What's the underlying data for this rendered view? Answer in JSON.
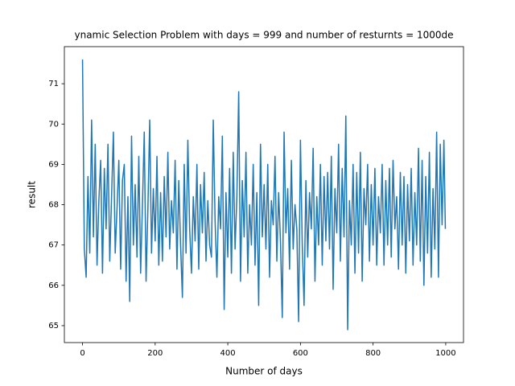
{
  "chart_data": {
    "type": "line",
    "title": "ynamic Selection Problem with days = 999 and number of resturnts = 1000de",
    "x_label": "Number of days",
    "y_label": "result",
    "color": "#1f77b4",
    "xlim": [
      -49.95,
      1048.95
    ],
    "ylim": [
      64.58,
      71.92
    ],
    "xticks": [
      0,
      200,
      400,
      600,
      800,
      1000
    ],
    "yticks": [
      65,
      66,
      67,
      68,
      69,
      70,
      71
    ],
    "x": [
      0,
      5,
      10,
      15,
      20,
      25,
      30,
      35,
      40,
      45,
      50,
      55,
      60,
      65,
      70,
      75,
      80,
      85,
      90,
      95,
      100,
      105,
      110,
      115,
      120,
      125,
      130,
      135,
      140,
      145,
      150,
      155,
      160,
      165,
      170,
      175,
      180,
      185,
      190,
      195,
      200,
      205,
      210,
      215,
      220,
      225,
      230,
      235,
      240,
      245,
      250,
      255,
      260,
      265,
      270,
      275,
      280,
      285,
      290,
      295,
      300,
      305,
      310,
      315,
      320,
      325,
      330,
      335,
      340,
      345,
      350,
      355,
      360,
      365,
      370,
      375,
      380,
      385,
      390,
      395,
      400,
      405,
      410,
      415,
      420,
      425,
      430,
      435,
      440,
      445,
      450,
      455,
      460,
      465,
      470,
      475,
      480,
      485,
      490,
      495,
      500,
      505,
      510,
      515,
      520,
      525,
      530,
      535,
      540,
      545,
      550,
      555,
      560,
      565,
      570,
      575,
      580,
      585,
      590,
      595,
      600,
      605,
      610,
      615,
      620,
      625,
      630,
      635,
      640,
      645,
      650,
      655,
      660,
      665,
      670,
      675,
      680,
      685,
      690,
      695,
      700,
      705,
      710,
      715,
      720,
      725,
      730,
      735,
      740,
      745,
      750,
      755,
      760,
      765,
      770,
      775,
      780,
      785,
      790,
      795,
      800,
      805,
      810,
      815,
      820,
      825,
      830,
      835,
      840,
      845,
      850,
      855,
      860,
      865,
      870,
      875,
      880,
      885,
      890,
      895,
      900,
      905,
      910,
      915,
      920,
      925,
      930,
      935,
      940,
      945,
      950,
      955,
      960,
      965,
      970,
      975,
      980,
      985,
      990,
      995,
      999
    ],
    "values": [
      71.6,
      66.9,
      66.2,
      68.7,
      66.8,
      70.1,
      67.2,
      69.5,
      66.5,
      68.1,
      69.1,
      66.3,
      68.9,
      67.4,
      69.5,
      66.6,
      68.2,
      69.8,
      66.8,
      67.9,
      69.1,
      66.4,
      68.6,
      69.0,
      66.1,
      68.2,
      65.6,
      69.7,
      67.0,
      68.5,
      66.7,
      69.2,
      66.3,
      68.0,
      69.8,
      66.1,
      67.9,
      70.1,
      66.8,
      68.4,
      67.1,
      69.2,
      66.5,
      68.3,
      66.6,
      68.7,
      67.2,
      69.3,
      66.9,
      68.1,
      67.3,
      69.1,
      66.4,
      68.6,
      67.0,
      65.7,
      69.0,
      66.8,
      69.6,
      67.4,
      66.3,
      68.2,
      67.1,
      69.0,
      66.4,
      68.5,
      67.3,
      68.8,
      66.6,
      68.1,
      67.0,
      66.7,
      70.1,
      67.6,
      66.2,
      68.2,
      67.4,
      69.7,
      65.4,
      68.3,
      66.7,
      68.9,
      66.3,
      69.3,
      66.9,
      68.2,
      70.8,
      66.1,
      68.6,
      67.2,
      69.3,
      66.3,
      68.0,
      67.0,
      69.0,
      66.5,
      68.3,
      65.5,
      69.5,
      67.2,
      68.5,
      66.9,
      69.0,
      66.2,
      68.1,
      67.5,
      69.2,
      66.6,
      68.3,
      67.1,
      65.2,
      69.8,
      67.3,
      68.4,
      66.4,
      69.1,
      66.9,
      68.0,
      67.4,
      65.1,
      69.6,
      67.0,
      65.5,
      68.6,
      66.7,
      68.3,
      67.4,
      69.4,
      66.1,
      68.2,
      67.0,
      69.0,
      66.5,
      68.7,
      67.1,
      68.8,
      66.9,
      69.2,
      65.9,
      68.4,
      67.3,
      69.5,
      66.6,
      68.9,
      67.2,
      70.2,
      64.9,
      68.1,
      67.0,
      69.0,
      66.3,
      68.8,
      66.8,
      69.3,
      66.1,
      68.4,
      67.5,
      69.0,
      66.6,
      68.5,
      67.0,
      68.9,
      66.5,
      68.2,
      67.3,
      69.0,
      66.5,
      68.6,
      67.0,
      68.9,
      66.7,
      69.1,
      67.4,
      68.2,
      66.4,
      68.8,
      67.0,
      68.7,
      66.3,
      68.5,
      67.1,
      68.9,
      66.5,
      68.3,
      67.0,
      69.4,
      66.6,
      69.1,
      66.0,
      68.7,
      66.8,
      69.3,
      66.2,
      68.4,
      66.9,
      69.8,
      66.2,
      69.5,
      67.5,
      69.6,
      67.4
    ]
  }
}
